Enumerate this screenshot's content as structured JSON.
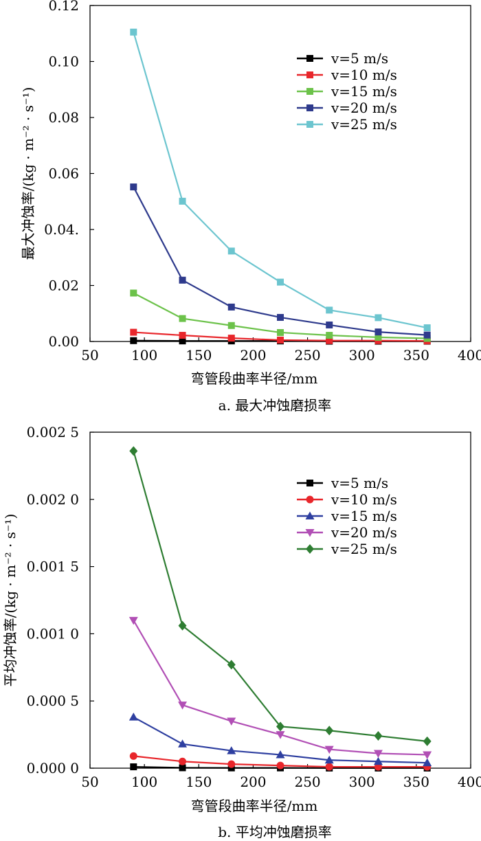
{
  "chart_data": [
    {
      "type": "line",
      "caption": "a. 最大冲蚀磨损率",
      "xlabel": "弯管段曲率半径/mm",
      "ylabel": "最大冲蚀率/(kg · m⁻² · s⁻¹)",
      "xlim": [
        50,
        400
      ],
      "ylim": [
        0,
        0.12
      ],
      "xticks": [
        "50",
        "100",
        "150",
        "200",
        "250",
        "300",
        "350",
        "400"
      ],
      "yticks": [
        "0.00",
        "0.02",
        "0.04.",
        "0.06",
        "0.08",
        "0.10",
        "0.12"
      ],
      "legend_position": "top-right",
      "x": [
        90,
        135,
        180,
        225,
        270,
        315,
        360
      ],
      "series": [
        {
          "name": "v=5 m/s",
          "color": "#000000",
          "marker": "square",
          "values": [
            0.0003,
            0.0002,
            0.0002,
            0.0002,
            0.0001,
            0.0001,
            0.0001
          ]
        },
        {
          "name": "v=10 m/s",
          "color": "#e8262b",
          "marker": "square",
          "values": [
            0.0033,
            0.0022,
            0.0012,
            0.0005,
            0.0003,
            0.0003,
            0.0002
          ]
        },
        {
          "name": "v=15 m/s",
          "color": "#6cc24a",
          "marker": "square",
          "values": [
            0.0173,
            0.0082,
            0.0057,
            0.0032,
            0.0022,
            0.0015,
            0.0011
          ]
        },
        {
          "name": "v=20 m/s",
          "color": "#2e3a8c",
          "marker": "square",
          "values": [
            0.0552,
            0.0219,
            0.0123,
            0.0086,
            0.0059,
            0.0034,
            0.0023
          ]
        },
        {
          "name": "v=25 m/s",
          "color": "#6cc5cf",
          "marker": "square",
          "values": [
            0.1105,
            0.0501,
            0.0323,
            0.0212,
            0.0112,
            0.0085,
            0.0049
          ]
        }
      ]
    },
    {
      "type": "line",
      "caption": "b. 平均冲蚀磨损率",
      "xlabel": "弯管段曲率半径/mm",
      "ylabel": "平均冲蚀率/(kg · m⁻² · s⁻¹)",
      "xlim": [
        50,
        400
      ],
      "ylim": [
        0,
        0.0025
      ],
      "xticks": [
        "50",
        "100",
        "150",
        "200",
        "250",
        "300",
        "350",
        "400"
      ],
      "yticks": [
        "0.000 0",
        "0.000 5",
        "0.001 0",
        "0.001 5",
        "0.002 0",
        "0.002 5"
      ],
      "legend_position": "top-right",
      "x": [
        90,
        135,
        180,
        225,
        270,
        315,
        360
      ],
      "series": [
        {
          "name": "v=5 m/s",
          "color": "#000000",
          "marker": "square",
          "values": [
            1e-05,
            3e-06,
            2e-06,
            2e-06,
            1e-06,
            1e-06,
            1e-06
          ]
        },
        {
          "name": "v=10 m/s",
          "color": "#e8262b",
          "marker": "circle",
          "values": [
            9e-05,
            5e-05,
            3e-05,
            2e-05,
            1e-05,
            1e-05,
            1e-05
          ]
        },
        {
          "name": "v=15 m/s",
          "color": "#2e3fa0",
          "marker": "triangle-up",
          "values": [
            0.00038,
            0.00018,
            0.00013,
            0.0001,
            6e-05,
            5e-05,
            4e-05
          ]
        },
        {
          "name": "v=20 m/s",
          "color": "#b14fb5",
          "marker": "triangle-down",
          "values": [
            0.0011,
            0.00047,
            0.00035,
            0.00025,
            0.00014,
            0.00011,
            0.0001
          ]
        },
        {
          "name": "v=25 m/s",
          "color": "#2e7d32",
          "marker": "diamond",
          "values": [
            0.00236,
            0.00106,
            0.00077,
            0.00031,
            0.00028,
            0.00024,
            0.0002
          ]
        }
      ]
    }
  ]
}
